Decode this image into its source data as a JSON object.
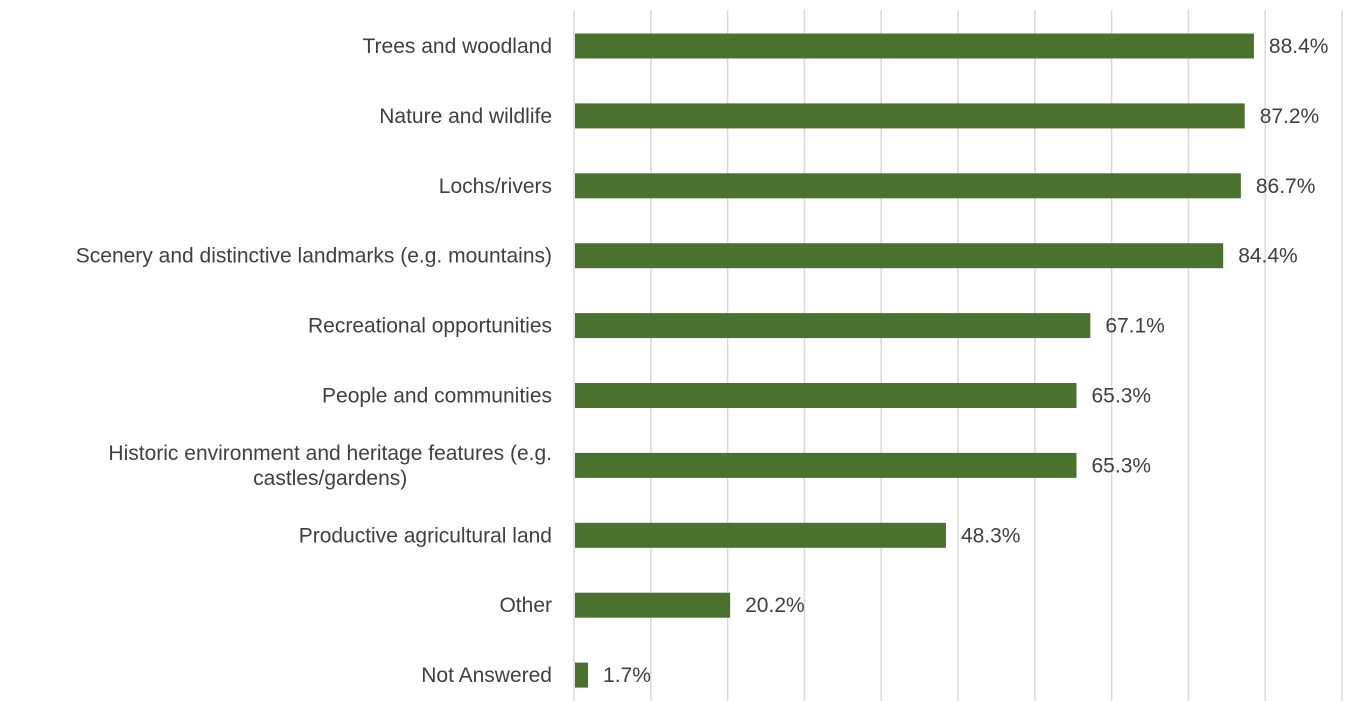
{
  "chart_data": {
    "type": "bar",
    "orientation": "horizontal",
    "categories": [
      [
        "Trees and woodland"
      ],
      [
        "Nature and wildlife"
      ],
      [
        "Lochs/rivers"
      ],
      [
        "Scenery and distinctive landmarks (e.g. mountains)"
      ],
      [
        "Recreational opportunities"
      ],
      [
        "People and communities"
      ],
      [
        "Historic environment and heritage features (e.g.",
        "castles/gardens)"
      ],
      [
        "Productive agricultural land"
      ],
      [
        "Other"
      ],
      [
        "Not Answered"
      ]
    ],
    "values": [
      88.4,
      87.2,
      86.7,
      84.4,
      67.1,
      65.3,
      65.3,
      48.3,
      20.2,
      1.7
    ],
    "value_labels": [
      "88.4%",
      "87.2%",
      "86.7%",
      "84.4%",
      "67.1%",
      "65.3%",
      "65.3%",
      "48.3%",
      "20.2%",
      "1.7%"
    ],
    "xlim": [
      0,
      100
    ],
    "grid": true,
    "gridline_step": 10,
    "bar_color": "#4a722e",
    "gridline_color": "#d9d9d9",
    "text_color": "#404040"
  }
}
